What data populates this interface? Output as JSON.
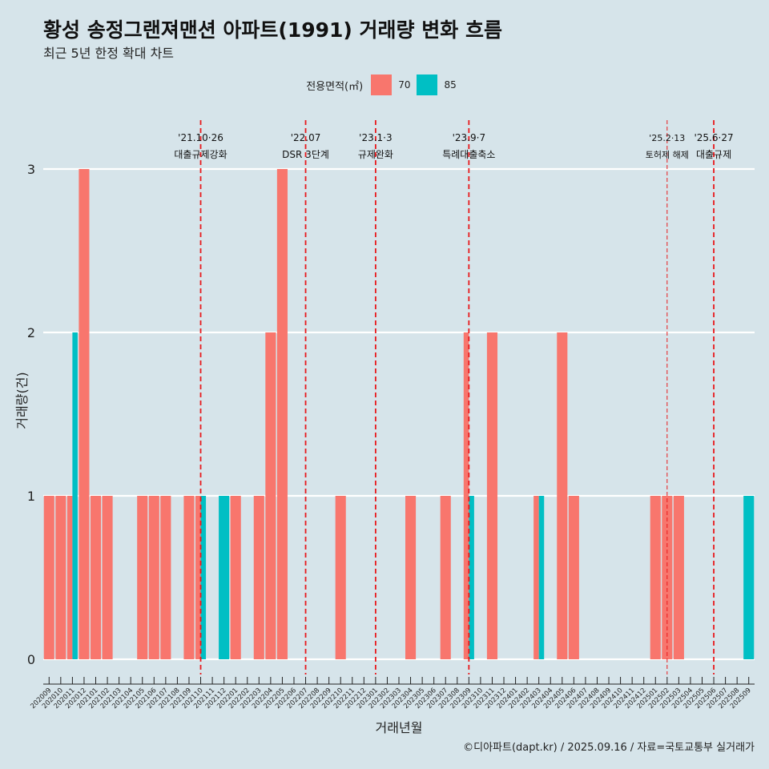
{
  "chart_data": {
    "type": "bar",
    "title": "황성 송정그랜져맨션 아파트(1991) 거래량 변화 흐름",
    "subtitle": "최근 5년 한정 확대 차트",
    "xlabel": "거래년월",
    "ylabel": "거래량(건)",
    "ylim": [
      0,
      3.3
    ],
    "yticks": [
      "0",
      "1",
      "2",
      "3"
    ],
    "grid": true,
    "legend": {
      "title": "전용면적(㎡)",
      "position": "top",
      "entries": [
        {
          "name": "70",
          "color": "#f8766d"
        },
        {
          "name": "85",
          "color": "#00bfc4"
        }
      ]
    },
    "categories": [
      "202009",
      "202010",
      "202011",
      "202012",
      "202101",
      "202102",
      "202103",
      "202104",
      "202105",
      "202106",
      "202107",
      "202108",
      "202109",
      "202110",
      "202111",
      "202112",
      "202201",
      "202202",
      "202203",
      "202204",
      "202205",
      "202206",
      "202207",
      "202208",
      "202209",
      "202210",
      "202211",
      "202212",
      "202301",
      "202302",
      "202303",
      "202304",
      "202305",
      "202306",
      "202307",
      "202308",
      "202309",
      "202310",
      "202311",
      "202312",
      "202401",
      "202402",
      "202403",
      "202404",
      "202405",
      "202406",
      "202407",
      "202408",
      "202409",
      "202410",
      "202411",
      "202412",
      "202501",
      "202502",
      "202503",
      "202504",
      "202505",
      "202506",
      "202507",
      "202508",
      "202509"
    ],
    "series": [
      {
        "name": "70",
        "color": "#f8766d",
        "values": [
          1,
          1,
          1,
          3,
          1,
          1,
          0,
          0,
          1,
          1,
          1,
          0,
          1,
          1,
          0,
          0,
          1,
          0,
          1,
          2,
          3,
          0,
          0,
          0,
          0,
          1,
          0,
          0,
          0,
          0,
          0,
          1,
          0,
          0,
          1,
          0,
          2,
          0,
          2,
          0,
          0,
          0,
          1,
          0,
          2,
          1,
          0,
          0,
          0,
          0,
          0,
          0,
          1,
          1,
          1,
          0,
          0,
          0,
          0,
          0,
          0
        ]
      },
      {
        "name": "85",
        "color": "#00bfc4",
        "values": [
          0,
          0,
          2,
          0,
          0,
          0,
          0,
          0,
          0,
          0,
          0,
          0,
          0,
          1,
          0,
          1,
          0,
          0,
          0,
          0,
          0,
          0,
          0,
          0,
          0,
          0,
          0,
          0,
          0,
          0,
          0,
          0,
          0,
          0,
          0,
          0,
          1,
          0,
          0,
          0,
          0,
          0,
          1,
          0,
          0,
          0,
          0,
          0,
          0,
          0,
          0,
          0,
          0,
          0,
          0,
          0,
          0,
          0,
          0,
          0,
          1
        ]
      }
    ],
    "annotations": [
      {
        "x": "202110",
        "date": "'21.10·26",
        "text": "대출규제강화",
        "style": "dashed"
      },
      {
        "x": "202207",
        "date": "'22.07",
        "text": "DSR 3단계",
        "style": "dashed"
      },
      {
        "x": "202301",
        "date": "'23.1·3",
        "text": "규제완화",
        "style": "dashed"
      },
      {
        "x": "202309",
        "date": "'23.9·7",
        "text": "특례대출축소",
        "style": "dashed"
      },
      {
        "x": "202502",
        "date": "'25.2·13",
        "text": "토허제 해제",
        "style": "thin-dashed"
      },
      {
        "x": "202506",
        "date": "'25.6·27",
        "text": "대출규제",
        "style": "dashed"
      }
    ]
  },
  "caption": "©디아파트(dapt.kr) / 2025.09.16 / 자료=국토교통부 실거래가"
}
